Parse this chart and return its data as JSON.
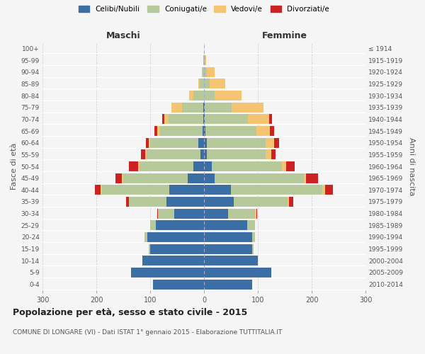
{
  "age_groups": [
    "0-4",
    "5-9",
    "10-14",
    "15-19",
    "20-24",
    "25-29",
    "30-34",
    "35-39",
    "40-44",
    "45-49",
    "50-54",
    "55-59",
    "60-64",
    "65-69",
    "70-74",
    "75-79",
    "80-84",
    "85-89",
    "90-94",
    "95-99",
    "100+"
  ],
  "birth_years": [
    "2010-2014",
    "2005-2009",
    "2000-2004",
    "1995-1999",
    "1990-1994",
    "1985-1989",
    "1980-1984",
    "1975-1979",
    "1970-1974",
    "1965-1969",
    "1960-1964",
    "1955-1959",
    "1950-1954",
    "1945-1949",
    "1940-1944",
    "1935-1939",
    "1930-1934",
    "1925-1929",
    "1920-1924",
    "1915-1919",
    "≤ 1914"
  ],
  "males": {
    "celibi": [
      95,
      135,
      115,
      100,
      105,
      90,
      55,
      70,
      65,
      30,
      20,
      7,
      10,
      2,
      1,
      1,
      0,
      0,
      0,
      0,
      0
    ],
    "coniugati": [
      0,
      0,
      0,
      2,
      5,
      10,
      30,
      70,
      125,
      120,
      100,
      100,
      90,
      80,
      65,
      40,
      20,
      8,
      3,
      1,
      0
    ],
    "vedovi": [
      0,
      0,
      0,
      0,
      0,
      0,
      0,
      0,
      2,
      2,
      2,
      2,
      3,
      5,
      8,
      20,
      8,
      3,
      1,
      0,
      0
    ],
    "divorziati": [
      0,
      0,
      0,
      0,
      0,
      0,
      2,
      5,
      10,
      12,
      18,
      8,
      5,
      5,
      3,
      0,
      0,
      0,
      0,
      0,
      0
    ]
  },
  "females": {
    "nubili": [
      90,
      125,
      100,
      90,
      90,
      80,
      45,
      55,
      50,
      20,
      15,
      5,
      5,
      2,
      1,
      1,
      0,
      0,
      0,
      0,
      0
    ],
    "coniugate": [
      0,
      0,
      0,
      2,
      5,
      15,
      50,
      100,
      170,
      165,
      130,
      110,
      110,
      95,
      80,
      50,
      20,
      10,
      5,
      2,
      0
    ],
    "vedove": [
      0,
      0,
      0,
      0,
      0,
      0,
      2,
      3,
      5,
      5,
      8,
      10,
      15,
      25,
      40,
      60,
      50,
      30,
      15,
      2,
      0
    ],
    "divorziate": [
      0,
      0,
      0,
      0,
      0,
      0,
      2,
      8,
      15,
      22,
      15,
      8,
      10,
      8,
      5,
      0,
      0,
      0,
      0,
      0,
      0
    ]
  },
  "colors": {
    "celibi": "#3a6ea5",
    "coniugati": "#b5c99a",
    "vedovi": "#f5c472",
    "divorziati": "#cc2222"
  },
  "xlim": 300,
  "title": "Popolazione per età, sesso e stato civile - 2015",
  "subtitle": "COMUNE DI LONGARE (VI) - Dati ISTAT 1° gennaio 2015 - Elaborazione TUTTITALIA.IT",
  "ylabel_left": "Fasce di età",
  "ylabel_right": "Anni di nascita",
  "xlabel_left": "Maschi",
  "xlabel_right": "Femmine",
  "bg_color": "#f5f5f5",
  "grid_color": "#cccccc"
}
